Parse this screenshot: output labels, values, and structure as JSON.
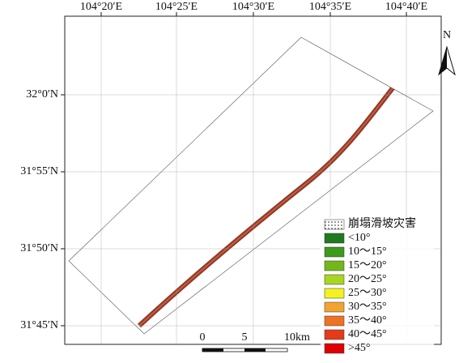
{
  "map": {
    "lon_labels": [
      "104°20′E",
      "104°25′E",
      "104°30′E",
      "104°35′E",
      "104°40′E"
    ],
    "lat_labels": [
      "32°0′N",
      "31°55′N",
      "31°50′N",
      "31°45′N"
    ],
    "north": "N",
    "legend": [
      {
        "label": "崩塌滑坡灾害"
      },
      {
        "label": "<10°",
        "color": "#1f7a1f"
      },
      {
        "label": "10～15°",
        "color": "#3c9a1c"
      },
      {
        "label": "15～20°",
        "color": "#72b81a"
      },
      {
        "label": "20～25°",
        "color": "#a8d622"
      },
      {
        "label": "25～30°",
        "color": "#f2f222"
      },
      {
        "label": "30～35°",
        "color": "#f2a432"
      },
      {
        "label": "35～40°",
        "color": "#ee7224"
      },
      {
        "label": "40～45°",
        "color": "#e63a18"
      },
      {
        "label": ">45°",
        "color": "#de0000"
      }
    ],
    "scale_labels": [
      "0",
      "5",
      "10km"
    ]
  }
}
